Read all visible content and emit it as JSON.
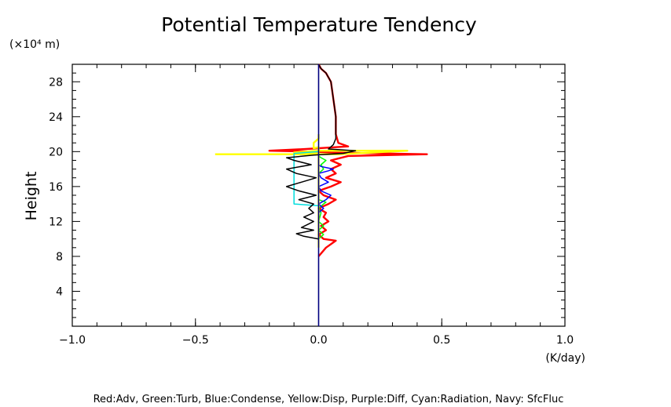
{
  "chart_data": {
    "type": "line",
    "title": "Potential Temperature Tendency",
    "xlabel": "(K/day)",
    "ylabel": "Height",
    "yunit": "(×10⁴ m)",
    "xlim": [
      -1.0,
      1.0
    ],
    "ylim": [
      0,
      30
    ],
    "xticks": [
      -1.0,
      -0.5,
      0.0,
      0.5,
      1.0
    ],
    "xtick_labels": [
      "−1.0",
      "−0.5",
      "0.0",
      "0.5",
      "1.0"
    ],
    "yticks": [
      4,
      8,
      12,
      16,
      20,
      24,
      28
    ],
    "ytick_labels": [
      "4",
      "8",
      "12",
      "16",
      "20",
      "24",
      "28"
    ],
    "legend_text": "Red:Adv, Green:Turb, Blue:Condense, Yellow:Disp, Purple:Diff, Cyan:Radiation, Navy: SfcFluc",
    "grid": false,
    "series": [
      {
        "name": "Red:Adv",
        "color": "#ff0000",
        "points": [
          [
            0.0,
            8.0
          ],
          [
            0.03,
            9.0
          ],
          [
            0.07,
            9.8
          ],
          [
            0.02,
            10.0
          ],
          [
            0.0,
            10.5
          ],
          [
            0.03,
            11.0
          ],
          [
            0.01,
            11.5
          ],
          [
            0.04,
            12.0
          ],
          [
            0.02,
            12.5
          ],
          [
            0.03,
            13.0
          ],
          [
            0.0,
            13.5
          ],
          [
            0.04,
            14.0
          ],
          [
            0.07,
            14.5
          ],
          [
            0.02,
            15.0
          ],
          [
            0.0,
            15.5
          ],
          [
            0.05,
            16.0
          ],
          [
            0.09,
            16.5
          ],
          [
            0.03,
            17.0
          ],
          [
            0.07,
            17.5
          ],
          [
            0.05,
            18.0
          ],
          [
            0.09,
            18.5
          ],
          [
            0.05,
            19.0
          ],
          [
            0.12,
            19.5
          ],
          [
            0.44,
            19.7
          ],
          [
            0.05,
            19.9
          ],
          [
            -0.03,
            20.0
          ],
          [
            -0.2,
            20.1
          ],
          [
            -0.05,
            20.3
          ],
          [
            0.12,
            20.6
          ],
          [
            0.08,
            21.0
          ],
          [
            0.07,
            22.0
          ],
          [
            0.07,
            24.0
          ],
          [
            0.06,
            26.0
          ],
          [
            0.05,
            28.0
          ],
          [
            0.03,
            29.0
          ],
          [
            0.01,
            29.5
          ],
          [
            0.0,
            30.0
          ]
        ]
      },
      {
        "name": "Green:Turb",
        "color": "#00ff00",
        "points": [
          [
            0.0,
            10.0
          ],
          [
            0.02,
            10.5
          ],
          [
            0.0,
            11.0
          ],
          [
            0.02,
            11.5
          ],
          [
            0.0,
            12.0
          ],
          [
            0.01,
            13.0
          ],
          [
            0.0,
            13.5
          ],
          [
            0.02,
            14.0
          ],
          [
            0.03,
            14.2
          ],
          [
            0.0,
            14.5
          ],
          [
            0.0,
            17.5
          ],
          [
            0.02,
            18.0
          ],
          [
            0.01,
            18.5
          ],
          [
            0.03,
            19.0
          ],
          [
            0.01,
            19.3
          ],
          [
            0.0,
            19.5
          ],
          [
            0.0,
            20.0
          ]
        ]
      },
      {
        "name": "Blue:Condense",
        "color": "#0000ff",
        "points": [
          [
            0.0,
            13.0
          ],
          [
            0.02,
            13.5
          ],
          [
            0.0,
            14.0
          ],
          [
            0.03,
            14.5
          ],
          [
            0.05,
            15.0
          ],
          [
            0.01,
            15.5
          ],
          [
            0.0,
            16.0
          ],
          [
            0.04,
            16.5
          ],
          [
            0.01,
            17.0
          ],
          [
            0.0,
            17.5
          ],
          [
            0.04,
            17.8
          ],
          [
            0.06,
            18.0
          ],
          [
            0.01,
            18.3
          ],
          [
            0.0,
            18.5
          ]
        ]
      },
      {
        "name": "Yellow:Disp",
        "color": "#ffff00",
        "points": [
          [
            0.0,
            9.0
          ],
          [
            0.0,
            20.5
          ],
          [
            -0.02,
            20.4
          ],
          [
            -0.02,
            21.0
          ],
          [
            0.0,
            21.5
          ],
          [
            0.0,
            22.0
          ]
        ]
      },
      {
        "name": "Yellow:Disp",
        "color": "#ffff00",
        "points": [
          [
            -0.42,
            19.7
          ],
          [
            0.08,
            19.7
          ],
          [
            0.36,
            20.1
          ],
          [
            0.0,
            20.1
          ],
          [
            -0.1,
            19.9
          ],
          [
            0.0,
            19.8
          ]
        ]
      },
      {
        "name": "Cyan:Radiation",
        "color": "#00dddd",
        "points": [
          [
            0.0,
            13.8
          ],
          [
            -0.1,
            14.0
          ],
          [
            -0.1,
            14.5
          ],
          [
            -0.1,
            19.8
          ],
          [
            0.0,
            20.0
          ]
        ]
      },
      {
        "name": "Black",
        "color": "#000000",
        "points": [
          [
            0.0,
            10.0
          ],
          [
            -0.06,
            10.3
          ],
          [
            -0.09,
            10.6
          ],
          [
            -0.02,
            11.0
          ],
          [
            -0.07,
            11.3
          ],
          [
            -0.02,
            12.0
          ],
          [
            -0.06,
            12.5
          ],
          [
            -0.02,
            13.0
          ],
          [
            -0.04,
            13.5
          ],
          [
            -0.02,
            14.0
          ],
          [
            -0.08,
            14.5
          ],
          [
            -0.01,
            15.0
          ],
          [
            -0.08,
            15.5
          ],
          [
            -0.13,
            16.0
          ],
          [
            -0.07,
            16.5
          ],
          [
            -0.01,
            17.0
          ],
          [
            -0.09,
            17.5
          ],
          [
            -0.13,
            18.0
          ],
          [
            -0.03,
            18.5
          ],
          [
            -0.1,
            19.0
          ],
          [
            -0.13,
            19.3
          ],
          [
            -0.02,
            19.6
          ],
          [
            0.1,
            19.8
          ],
          [
            0.15,
            20.1
          ],
          [
            0.04,
            20.3
          ],
          [
            0.06,
            20.8
          ],
          [
            0.07,
            21.5
          ],
          [
            0.07,
            24.0
          ],
          [
            0.06,
            26.0
          ],
          [
            0.05,
            28.0
          ],
          [
            0.03,
            29.0
          ],
          [
            0.01,
            29.5
          ],
          [
            0.0,
            30.0
          ]
        ]
      },
      {
        "name": "Navy: SfcFluc",
        "color": "#000080",
        "points": [
          [
            0.0,
            0.0
          ],
          [
            0.0,
            30.0
          ]
        ]
      }
    ]
  }
}
